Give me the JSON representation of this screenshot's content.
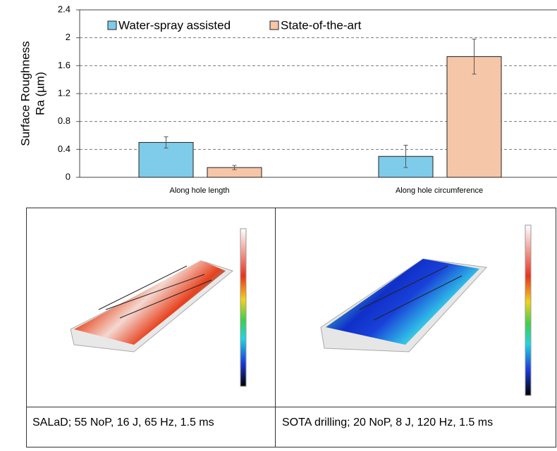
{
  "chart_data": {
    "type": "bar",
    "y_label": [
      "Surface Roughness",
      "Ra (µm)"
    ],
    "categories": [
      "Along hole length",
      "Along hole circumference"
    ],
    "series": [
      {
        "name": "Water-spray assisted",
        "color": "#7fcbea",
        "values": [
          0.5,
          0.3
        ],
        "errors": [
          0.08,
          0.16
        ]
      },
      {
        "name": "State-of-the-art",
        "color": "#f6c6a8",
        "values": [
          0.14,
          1.73
        ],
        "errors": [
          0.03,
          0.25
        ]
      }
    ],
    "ylim": [
      0,
      2.4
    ],
    "yticks": [
      0,
      0.4,
      0.8,
      1.2,
      1.6,
      2,
      2.4
    ],
    "grid": true
  },
  "panels": [
    {
      "caption": "SALaD; 55 NoP, 16 J, 65 Hz, 1.5 ms"
    },
    {
      "caption": "SOTA drilling; 20 NoP, 8 J, 120 Hz, 1.5 ms"
    }
  ]
}
